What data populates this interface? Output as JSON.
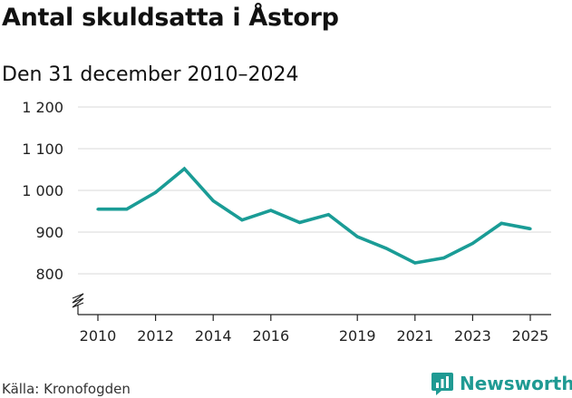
{
  "title": "Antal skuldsatta i Åstorp",
  "subtitle": "Den 31 december 2010–2024",
  "source": "Källa: Kronofogden",
  "brand": {
    "name": "Newsworthy",
    "icon": "newsworthy-logo-icon",
    "color": "#1f9a93"
  },
  "chart_data": {
    "type": "line",
    "title": "Antal skuldsatta i Åstorp",
    "subtitle": "Den 31 december 2010–2024",
    "x": [
      2010,
      2011,
      2012,
      2013,
      2014,
      2015,
      2016,
      2017,
      2018,
      2019,
      2020,
      2021,
      2022,
      2023,
      2024,
      2025
    ],
    "series": [
      {
        "values": [
          955,
          955,
          995,
          1052,
          975,
          929,
          952,
          923,
          942,
          889,
          861,
          826,
          838,
          873,
          921,
          908
        ],
        "color": "#1a9c96"
      }
    ],
    "x_ticks": [
      2010,
      2012,
      2014,
      2016,
      2019,
      2021,
      2023,
      2025
    ],
    "x_tick_labels": [
      "2010",
      "2012",
      "2014",
      "2016",
      "2019",
      "2021",
      "2023",
      "2025"
    ],
    "y_ticks": [
      800,
      900,
      1000,
      1100,
      1200
    ],
    "y_tick_labels": [
      "800",
      "900",
      "1 000",
      "1 100",
      "1 200"
    ],
    "ylim": [
      700,
      1200
    ],
    "xlim": [
      2010,
      2025
    ],
    "y_axis_break": true,
    "grid": true,
    "xlabel": "",
    "ylabel": ""
  }
}
